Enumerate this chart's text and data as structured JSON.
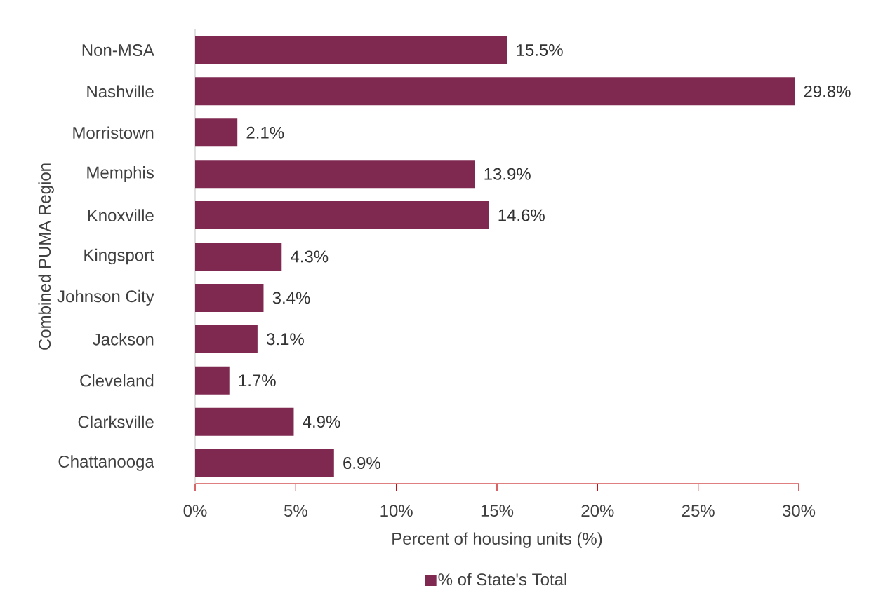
{
  "chart_data": {
    "type": "bar",
    "orientation": "horizontal",
    "ylabel": "Combined PUMA Region",
    "xlabel": "Percent of housing units (%)",
    "categories": [
      "Non-MSA",
      "Nashville",
      "Morristown",
      "Memphis",
      "Knoxville",
      "Kingsport",
      "Johnson City",
      "Jackson",
      "Cleveland",
      "Clarksville",
      "Chattanooga"
    ],
    "series": [
      {
        "name": "% of State's Total",
        "color": "#7f2850",
        "values": [
          15.5,
          29.8,
          2.1,
          13.9,
          14.6,
          4.3,
          3.4,
          3.1,
          1.7,
          4.9,
          6.9
        ],
        "value_labels": [
          "15.5%",
          "29.8%",
          "2.1%",
          "13.9%",
          "14.6%",
          "4.3%",
          "3.4%",
          "3.1%",
          "1.7%",
          "4.9%",
          "6.9%"
        ]
      }
    ],
    "xlim": [
      0,
      30
    ],
    "xticks": [
      {
        "value": 0,
        "label": "0%"
      },
      {
        "value": 5,
        "label": "5%"
      },
      {
        "value": 10,
        "label": "10%"
      },
      {
        "value": 15,
        "label": "15%"
      },
      {
        "value": 20,
        "label": "20%"
      },
      {
        "value": 25,
        "label": "25%"
      },
      {
        "value": 30,
        "label": "30%"
      }
    ],
    "legend": "bottom",
    "grid": false
  }
}
